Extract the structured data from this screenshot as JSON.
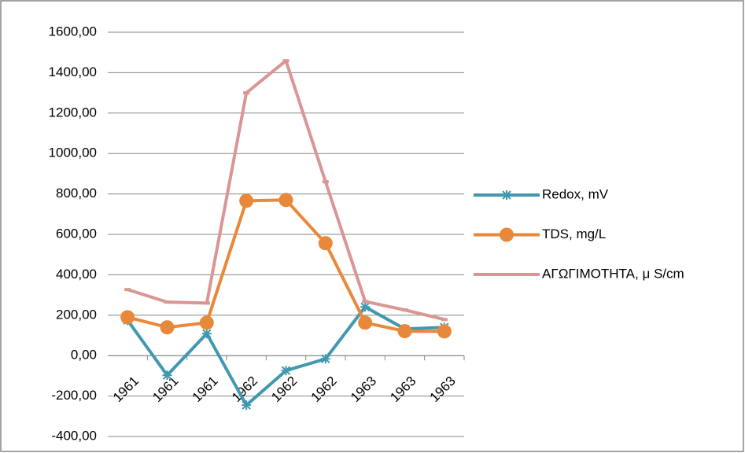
{
  "chart_data": {
    "type": "line",
    "categories": [
      "1961",
      "1961",
      "1961",
      "1962",
      "1962",
      "1962",
      "1963",
      "1963",
      "1963"
    ],
    "series": [
      {
        "name": "Redox, mV",
        "color": "#4198af",
        "marker": "star",
        "values": [
          175,
          -97,
          109,
          -245,
          -74,
          -16,
          241,
          132,
          140
        ]
      },
      {
        "name": "TDS, mg/L",
        "color": "#e8883a",
        "marker": "circle",
        "values": [
          190,
          140,
          163,
          766,
          770,
          556,
          163,
          121,
          120
        ]
      },
      {
        "name": "ΑΓΩΓΙΜΟΤΗΤΑ, μ S/cm",
        "color": "#d99694",
        "marker": "dash",
        "values": [
          327,
          265,
          260,
          1300,
          1459,
          860,
          268,
          226,
          179
        ]
      }
    ],
    "ylim": [
      -400,
      1600
    ],
    "yticks": [
      {
        "value": -400,
        "label": "-400,00"
      },
      {
        "value": -200,
        "label": "-200,00"
      },
      {
        "value": 0,
        "label": "0,00"
      },
      {
        "value": 200,
        "label": "200,00"
      },
      {
        "value": 400,
        "label": "400,00"
      },
      {
        "value": 600,
        "label": "600,00"
      },
      {
        "value": 800,
        "label": "800,00"
      },
      {
        "value": 1000,
        "label": "1000,00"
      },
      {
        "value": 1200,
        "label": "1200,00"
      },
      {
        "value": 1400,
        "label": "1400,00"
      },
      {
        "value": 1600,
        "label": "1600,00"
      }
    ],
    "grid": true,
    "legend": "right"
  }
}
